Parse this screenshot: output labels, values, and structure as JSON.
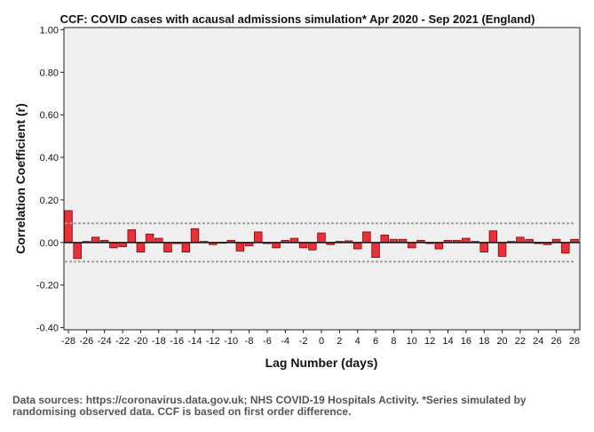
{
  "chart_data": {
    "type": "bar",
    "title": "CCF: COVID cases with acausal admissions simulation* Apr 2020 - Sep 2021 (England)",
    "xlabel": "Lag Number (days)",
    "ylabel": "Correlation Coefficient (r)",
    "ylim": [
      -0.41,
      1.01
    ],
    "xlim": [
      -28,
      28
    ],
    "yticks": [
      "-0.40",
      "-0.20",
      "0.00",
      "0.20",
      "0.40",
      "0.60",
      "0.80",
      "1.00"
    ],
    "ytick_values": [
      -0.4,
      -0.2,
      0.0,
      0.2,
      0.4,
      0.6,
      0.8,
      1.0
    ],
    "xticks": [
      "-28",
      "-26",
      "-24",
      "-22",
      "-20",
      "-18",
      "-16",
      "-14",
      "-12",
      "-10",
      "-8",
      "-6",
      "-4",
      "-2",
      "0",
      "2",
      "4",
      "6",
      "8",
      "10",
      "12",
      "14",
      "16",
      "18",
      "20",
      "22",
      "24",
      "26",
      "28"
    ],
    "xtick_values": [
      -28,
      -26,
      -24,
      -22,
      -20,
      -18,
      -16,
      -14,
      -12,
      -10,
      -8,
      -6,
      -4,
      -2,
      0,
      2,
      4,
      6,
      8,
      10,
      12,
      14,
      16,
      18,
      20,
      22,
      24,
      26,
      28
    ],
    "lags": [
      -28,
      -27,
      -26,
      -25,
      -24,
      -23,
      -22,
      -21,
      -20,
      -19,
      -18,
      -17,
      -16,
      -15,
      -14,
      -13,
      -12,
      -11,
      -10,
      -9,
      -8,
      -7,
      -6,
      -5,
      -4,
      -3,
      -2,
      -1,
      0,
      1,
      2,
      3,
      4,
      5,
      6,
      7,
      8,
      9,
      10,
      11,
      12,
      13,
      14,
      15,
      16,
      17,
      18,
      19,
      20,
      21,
      22,
      23,
      24,
      25,
      26,
      27,
      28
    ],
    "values": [
      0.15,
      -0.075,
      0.005,
      0.025,
      0.01,
      -0.025,
      -0.02,
      0.06,
      -0.045,
      0.04,
      0.02,
      -0.045,
      -0.005,
      -0.045,
      0.065,
      0.005,
      -0.01,
      0.0,
      0.01,
      -0.04,
      -0.015,
      0.05,
      -0.005,
      -0.025,
      0.01,
      0.02,
      -0.025,
      -0.035,
      0.045,
      -0.01,
      0.005,
      0.008,
      -0.03,
      0.05,
      -0.07,
      0.035,
      0.015,
      0.015,
      -0.025,
      0.01,
      -0.005,
      -0.03,
      0.01,
      0.01,
      0.02,
      0.005,
      -0.045,
      0.055,
      -0.065,
      0.005,
      0.025,
      0.015,
      -0.005,
      -0.01,
      0.015,
      -0.05,
      0.015
    ],
    "confidence_limits": [
      0.09,
      -0.09
    ],
    "colors": {
      "bar_fill": "#e8303a",
      "bar_stroke": "#8b0000",
      "plot_background": "#efefef",
      "confidence_line": "#a0a0a0"
    }
  },
  "footnote": "Data sources: https://coronavirus.data.gov.uk; NHS COVID-19 Hospitals Activity. *Series simulated by randomising observed data. CCF is based on first order difference."
}
